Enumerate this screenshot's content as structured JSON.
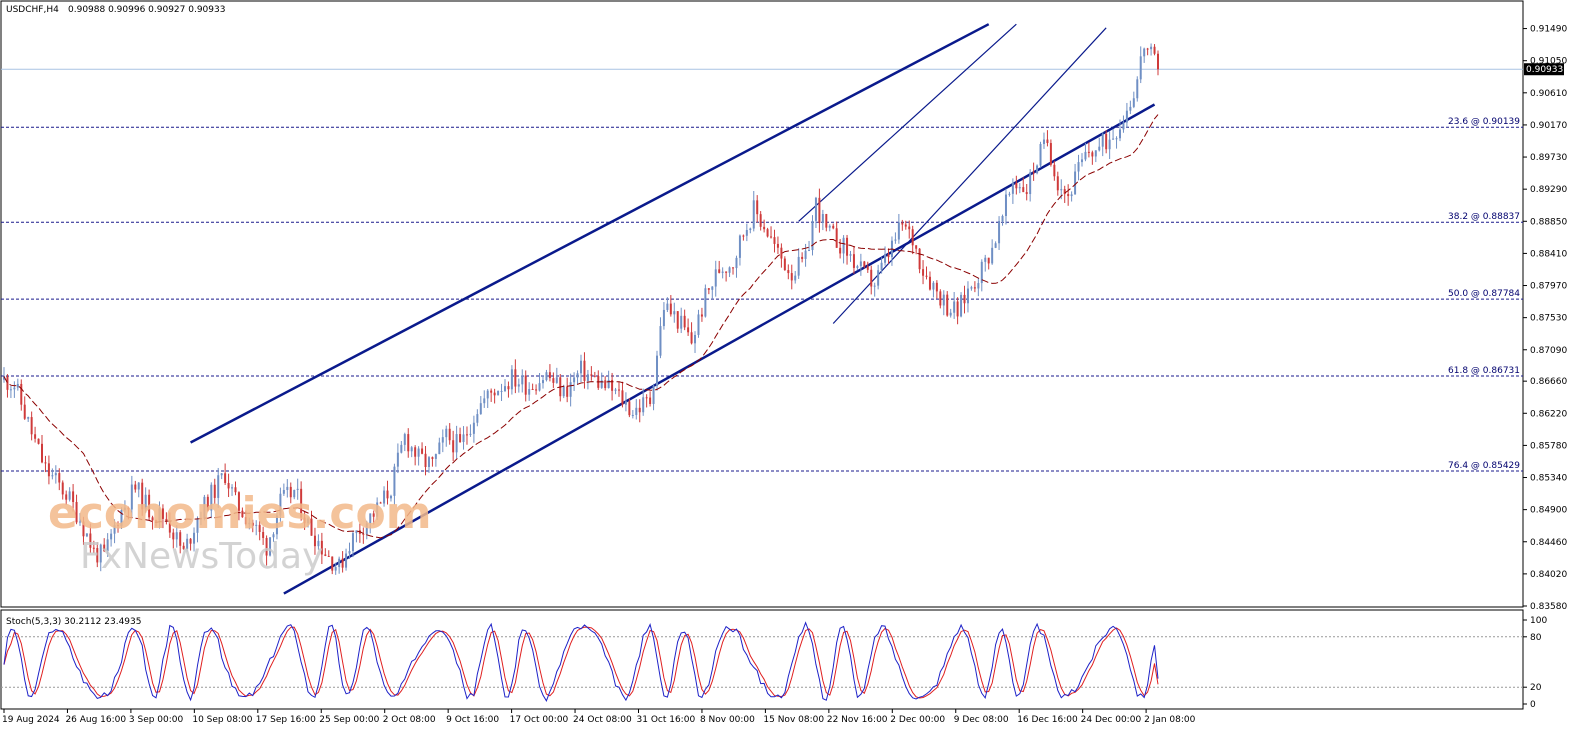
{
  "header": {
    "symbol": "USDCHF,H4",
    "ohlc": "0.90988 0.90996 0.90927 0.90933"
  },
  "current_price_label": "0.90933",
  "watermark": {
    "brand": "economies.com",
    "brand2": "FxNewsToday"
  },
  "colors": {
    "bull": "#6f8fc4",
    "bear": "#cf3a3a",
    "channel": "#0a1a8c",
    "ma": "#8b0000",
    "fib": "#1a1a8c",
    "stoch_main": "#1e22c8",
    "stoch_signal": "#e02020",
    "price_line": "#a9c4e4"
  },
  "chart_data": [
    {
      "type": "candlestick",
      "title": "USDCHF,H4",
      "ylim": [
        0.8358,
        0.9158
      ],
      "yticks": [
        "0.91490",
        "0.91050",
        "0.90610",
        "0.90170",
        "0.89730",
        "0.89290",
        "0.88850",
        "0.88410",
        "0.87970",
        "0.87530",
        "0.87090",
        "0.86660",
        "0.86220",
        "0.85780",
        "0.85340",
        "0.84900",
        "0.84460",
        "0.84020",
        "0.83580"
      ],
      "xticks": [
        "19 Aug 2024",
        "26 Aug 16:00",
        "3 Sep 00:00",
        "10 Sep 08:00",
        "17 Sep 16:00",
        "25 Sep 00:00",
        "2 Oct 08:00",
        "9 Oct 16:00",
        "17 Oct 00:00",
        "24 Oct 08:00",
        "31 Oct 16:00",
        "8 Nov 00:00",
        "15 Nov 08:00",
        "22 Nov 16:00",
        "2 Dec 00:00",
        "9 Dec 08:00",
        "16 Dec 16:00",
        "24 Dec 00:00",
        "2 Jan 08:00"
      ],
      "last_price": 0.90933,
      "price_path": [
        [
          0,
          0.8668
        ],
        [
          3,
          0.8662
        ],
        [
          8,
          0.8595
        ],
        [
          12,
          0.8545
        ],
        [
          18,
          0.8512
        ],
        [
          22,
          0.8478
        ],
        [
          26,
          0.8432
        ],
        [
          29,
          0.8425
        ],
        [
          33,
          0.848
        ],
        [
          38,
          0.852
        ],
        [
          42,
          0.849
        ],
        [
          47,
          0.8478
        ],
        [
          52,
          0.843
        ],
        [
          56,
          0.848
        ],
        [
          60,
          0.851
        ],
        [
          64,
          0.854
        ],
        [
          67,
          0.85
        ],
        [
          72,
          0.847
        ],
        [
          76,
          0.844
        ],
        [
          80,
          0.85
        ],
        [
          84,
          0.8515
        ],
        [
          88,
          0.847
        ],
        [
          93,
          0.8432
        ],
        [
          97,
          0.841
        ],
        [
          100,
          0.8445
        ],
        [
          104,
          0.847
        ],
        [
          108,
          0.849
        ],
        [
          112,
          0.852
        ],
        [
          116,
          0.859
        ],
        [
          120,
          0.856
        ],
        [
          124,
          0.855
        ],
        [
          128,
          0.859
        ],
        [
          132,
          0.8575
        ],
        [
          137,
          0.863
        ],
        [
          142,
          0.8655
        ],
        [
          147,
          0.867
        ],
        [
          152,
          0.866
        ],
        [
          157,
          0.8675
        ],
        [
          162,
          0.865
        ],
        [
          167,
          0.868
        ],
        [
          172,
          0.8665
        ],
        [
          177,
          0.865
        ],
        [
          182,
          0.8625
        ],
        [
          187,
          0.864
        ],
        [
          191,
          0.877
        ],
        [
          195,
          0.875
        ],
        [
          199,
          0.872
        ],
        [
          203,
          0.878
        ],
        [
          207,
          0.882
        ],
        [
          211,
          0.883
        ],
        [
          214,
          0.887
        ],
        [
          217,
          0.89
        ],
        [
          220,
          0.888
        ],
        [
          224,
          0.884
        ],
        [
          228,
          0.8815
        ],
        [
          232,
          0.883
        ],
        [
          235,
          0.891
        ],
        [
          238,
          0.887
        ],
        [
          242,
          0.8855
        ],
        [
          246,
          0.883
        ],
        [
          249,
          0.881
        ],
        [
          252,
          0.88
        ],
        [
          256,
          0.884
        ],
        [
          260,
          0.888
        ],
        [
          263,
          0.886
        ],
        [
          266,
          0.882
        ],
        [
          270,
          0.879
        ],
        [
          273,
          0.877
        ],
        [
          276,
          0.876
        ],
        [
          279,
          0.879
        ],
        [
          283,
          0.882
        ],
        [
          286,
          0.885
        ],
        [
          289,
          0.889
        ],
        [
          292,
          0.894
        ],
        [
          296,
          0.893
        ],
        [
          299,
          0.897
        ],
        [
          302,
          0.8995
        ],
        [
          305,
          0.894
        ],
        [
          308,
          0.892
        ],
        [
          311,
          0.8955
        ],
        [
          314,
          0.898
        ],
        [
          317,
          0.8985
        ],
        [
          320,
          0.9
        ],
        [
          323,
          0.902
        ],
        [
          326,
          0.905
        ],
        [
          328,
          0.908
        ],
        [
          330,
          0.9128
        ],
        [
          332,
          0.911
        ],
        [
          334,
          0.9093
        ]
      ]
    },
    {
      "type": "line",
      "title": "Stoch(5,3,3) 30.2112 23.4935",
      "ylim": [
        0,
        100
      ],
      "yticks": [
        "100",
        "80",
        "20",
        "0"
      ],
      "levels": [
        80,
        20
      ],
      "main_last": 30.2112,
      "signal_last": 23.4935
    }
  ],
  "fibonacci": [
    {
      "label": "23.6 @ 0.90139",
      "price": 0.90139
    },
    {
      "label": "38.2 @ 0.88837",
      "price": 0.88837
    },
    {
      "label": "50.0 @ 0.87784",
      "price": 0.87784
    },
    {
      "label": "61.8 @ 0.86731",
      "price": 0.86731
    },
    {
      "label": "76.4 @ 0.85429",
      "price": 0.85429
    }
  ]
}
